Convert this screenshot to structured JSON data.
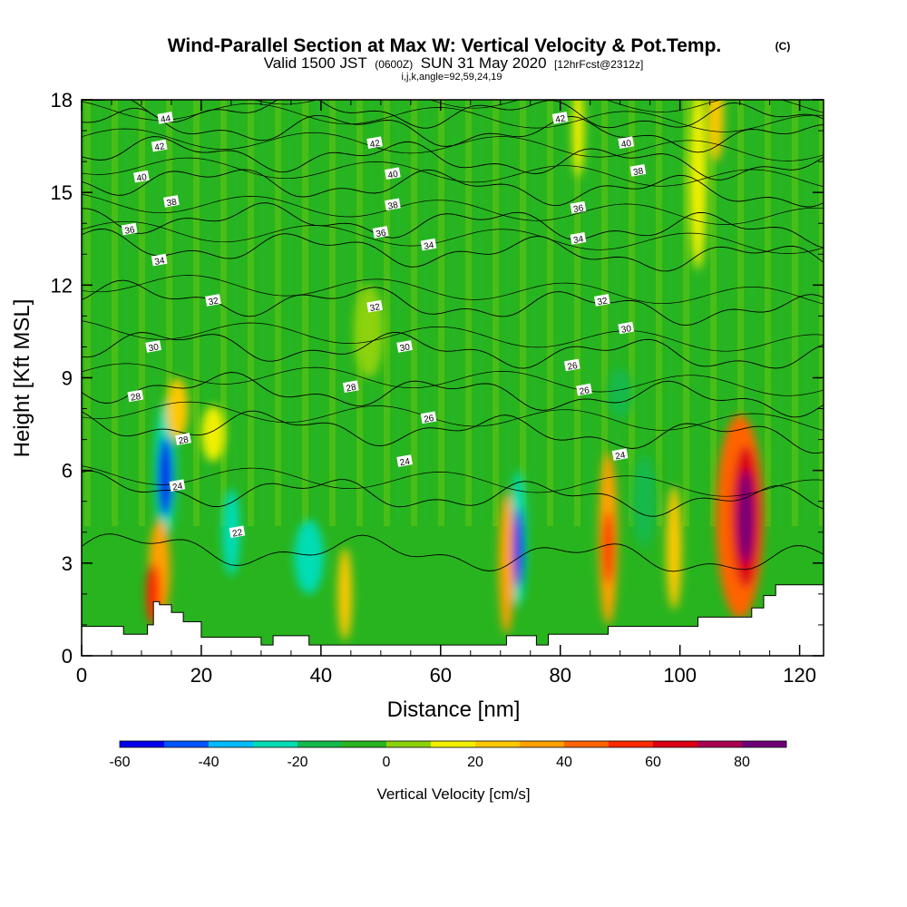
{
  "header": {
    "title": "Wind-Parallel Section at Max W: Vertical Velocity & Pot.Temp.",
    "copyright": "(C)",
    "valid_prefix": "Valid 1500 JST",
    "valid_utc": "(0600Z)",
    "valid_date": "SUN 31 May 2020",
    "forecast": "[12hrFcst@2312z]",
    "indices": "i,j,k,angle=92,59,24,19"
  },
  "colors": {
    "bins": [
      "#0000ee",
      "#0055ff",
      "#00bbff",
      "#00dcb4",
      "#14b94b",
      "#28b41e",
      "#8cd20a",
      "#f0f000",
      "#ffc800",
      "#ffa000",
      "#ff6400",
      "#ff2800",
      "#dc0014",
      "#aa0050",
      "#6e0078"
    ],
    "terrain": "#ffffff",
    "contour": "#000000"
  },
  "chart_data": {
    "type": "heatmap",
    "title": "Wind-Parallel Section at Max W: Vertical Velocity & Pot.Temp.",
    "xlabel": "Distance [nm]",
    "ylabel": "Height [Kft MSL]",
    "xlim": [
      0,
      124
    ],
    "ylim": [
      0,
      18
    ],
    "x_ticks": [
      "0",
      "20",
      "40",
      "60",
      "80",
      "100",
      "120"
    ],
    "y_ticks": [
      "0",
      "3",
      "6",
      "9",
      "12",
      "15",
      "18"
    ],
    "colorbar": {
      "label": "Vertical Velocity [cm/s]",
      "ticks": [
        "-60",
        "-40",
        "-20",
        "0",
        "20",
        "40",
        "60",
        "80"
      ],
      "levels": [
        -60,
        -50,
        -40,
        -30,
        -20,
        -10,
        0,
        10,
        20,
        30,
        40,
        50,
        60,
        70,
        80,
        90
      ]
    },
    "vertical_velocity_cells": [
      {
        "x": 14,
        "y": 5.8,
        "w": 1.2,
        "h": 1.3,
        "value": -65
      },
      {
        "x": 14,
        "y": 6.0,
        "w": 1.8,
        "h": 2.2,
        "value": -25
      },
      {
        "x": 12,
        "y": 2.0,
        "w": 1.2,
        "h": 1.0,
        "value": 55
      },
      {
        "x": 13,
        "y": 2.8,
        "w": 1.8,
        "h": 1.6,
        "value": 30
      },
      {
        "x": 16,
        "y": 8.0,
        "w": 1.8,
        "h": 1.0,
        "value": 25
      },
      {
        "x": 22,
        "y": 7.2,
        "w": 2.0,
        "h": 0.9,
        "value": 15
      },
      {
        "x": 25,
        "y": 4.0,
        "w": 1.5,
        "h": 1.4,
        "value": -25
      },
      {
        "x": 38,
        "y": 3.2,
        "w": 2.5,
        "h": 1.2,
        "value": -25
      },
      {
        "x": 44,
        "y": 2.0,
        "w": 1.2,
        "h": 1.5,
        "value": 25
      },
      {
        "x": 48,
        "y": 10.5,
        "w": 2.5,
        "h": 1.5,
        "value": 5
      },
      {
        "x": 73,
        "y": 3.5,
        "w": 0.9,
        "h": 1.3,
        "value": -55
      },
      {
        "x": 73,
        "y": 3.8,
        "w": 1.4,
        "h": 2.2,
        "value": -30
      },
      {
        "x": 71,
        "y": 3.0,
        "w": 1.3,
        "h": 2.3,
        "value": 30
      },
      {
        "x": 88,
        "y": 3.5,
        "w": 0.9,
        "h": 1.2,
        "value": 55
      },
      {
        "x": 88,
        "y": 3.8,
        "w": 1.6,
        "h": 2.8,
        "value": 30
      },
      {
        "x": 94,
        "y": 5.0,
        "w": 2.0,
        "h": 1.5,
        "value": -15
      },
      {
        "x": 99,
        "y": 3.5,
        "w": 1.3,
        "h": 2.0,
        "value": 20
      },
      {
        "x": 103,
        "y": 15.5,
        "w": 1.5,
        "h": 3.0,
        "value": 15
      },
      {
        "x": 106,
        "y": 17.5,
        "w": 1.3,
        "h": 1.5,
        "value": 20
      },
      {
        "x": 111,
        "y": 4.5,
        "w": 1.3,
        "h": 1.5,
        "value": 88
      },
      {
        "x": 111,
        "y": 4.5,
        "w": 2.4,
        "h": 2.3,
        "value": 60
      },
      {
        "x": 110,
        "y": 4.5,
        "w": 4.0,
        "h": 3.3,
        "value": 40
      },
      {
        "x": 83,
        "y": 17.0,
        "w": 1.0,
        "h": 1.5,
        "value": 15
      },
      {
        "x": 90,
        "y": 8.5,
        "w": 2.0,
        "h": 0.8,
        "value": -15
      }
    ],
    "isentropes": [
      {
        "theta": 22,
        "y": 3.3
      },
      {
        "theta": 24,
        "y": 5.2
      },
      {
        "theta": 26,
        "y": 7.3
      },
      {
        "theta": 28,
        "y": 8.5
      },
      {
        "theta": 30,
        "y": 9.9
      },
      {
        "theta": 32,
        "y": 11.4
      },
      {
        "theta": 34,
        "y": 13.1
      },
      {
        "theta": 36,
        "y": 14.0
      },
      {
        "theta": 38,
        "y": 15.2
      },
      {
        "theta": 40,
        "y": 16.1
      },
      {
        "theta": 42,
        "y": 17.0
      },
      {
        "theta": 44,
        "y": 17.6
      }
    ],
    "contour_labels": [
      {
        "text": "44",
        "x": 14,
        "y": 17.4
      },
      {
        "text": "42",
        "x": 13,
        "y": 16.5
      },
      {
        "text": "40",
        "x": 10,
        "y": 15.5
      },
      {
        "text": "38",
        "x": 15,
        "y": 14.7
      },
      {
        "text": "36",
        "x": 8,
        "y": 13.8
      },
      {
        "text": "34",
        "x": 13,
        "y": 12.8
      },
      {
        "text": "32",
        "x": 22,
        "y": 11.5
      },
      {
        "text": "30",
        "x": 12,
        "y": 10.0
      },
      {
        "text": "28",
        "x": 9,
        "y": 8.4
      },
      {
        "text": "28",
        "x": 17,
        "y": 7.0
      },
      {
        "text": "24",
        "x": 16,
        "y": 5.5
      },
      {
        "text": "22",
        "x": 26,
        "y": 4.0
      },
      {
        "text": "42",
        "x": 49,
        "y": 16.6
      },
      {
        "text": "40",
        "x": 52,
        "y": 15.6
      },
      {
        "text": "38",
        "x": 52,
        "y": 14.6
      },
      {
        "text": "36",
        "x": 50,
        "y": 13.7
      },
      {
        "text": "34",
        "x": 58,
        "y": 13.3
      },
      {
        "text": "32",
        "x": 49,
        "y": 11.3
      },
      {
        "text": "30",
        "x": 54,
        "y": 10.0
      },
      {
        "text": "28",
        "x": 45,
        "y": 8.7
      },
      {
        "text": "26",
        "x": 58,
        "y": 7.7
      },
      {
        "text": "24",
        "x": 54,
        "y": 6.3
      },
      {
        "text": "42",
        "x": 80,
        "y": 17.4
      },
      {
        "text": "40",
        "x": 91,
        "y": 16.6
      },
      {
        "text": "38",
        "x": 93,
        "y": 15.7
      },
      {
        "text": "36",
        "x": 83,
        "y": 14.5
      },
      {
        "text": "34",
        "x": 83,
        "y": 13.5
      },
      {
        "text": "32",
        "x": 87,
        "y": 11.5
      },
      {
        "text": "30",
        "x": 91,
        "y": 10.6
      },
      {
        "text": "26",
        "x": 82,
        "y": 9.4
      },
      {
        "text": "26",
        "x": 84,
        "y": 8.6
      },
      {
        "text": "24",
        "x": 90,
        "y": 6.5
      }
    ],
    "terrain_kft": [
      [
        0,
        0.95
      ],
      [
        7,
        0.95
      ],
      [
        7,
        0.7
      ],
      [
        11,
        0.7
      ],
      [
        11,
        1.0
      ],
      [
        12,
        1.0
      ],
      [
        12,
        1.75
      ],
      [
        13,
        1.75
      ],
      [
        13,
        1.65
      ],
      [
        15,
        1.65
      ],
      [
        15,
        1.4
      ],
      [
        17,
        1.4
      ],
      [
        17,
        1.1
      ],
      [
        20,
        1.1
      ],
      [
        20,
        0.6
      ],
      [
        30,
        0.6
      ],
      [
        30,
        0.35
      ],
      [
        32,
        0.35
      ],
      [
        32,
        0.65
      ],
      [
        38,
        0.65
      ],
      [
        38,
        0.35
      ],
      [
        71,
        0.35
      ],
      [
        71,
        0.65
      ],
      [
        76,
        0.65
      ],
      [
        76,
        0.35
      ],
      [
        78,
        0.35
      ],
      [
        78,
        0.7
      ],
      [
        88,
        0.7
      ],
      [
        88,
        0.95
      ],
      [
        103,
        0.95
      ],
      [
        103,
        1.25
      ],
      [
        112,
        1.25
      ],
      [
        112,
        1.55
      ],
      [
        114,
        1.55
      ],
      [
        114,
        1.95
      ],
      [
        116,
        1.95
      ],
      [
        116,
        2.3
      ],
      [
        124,
        2.3
      ]
    ]
  }
}
